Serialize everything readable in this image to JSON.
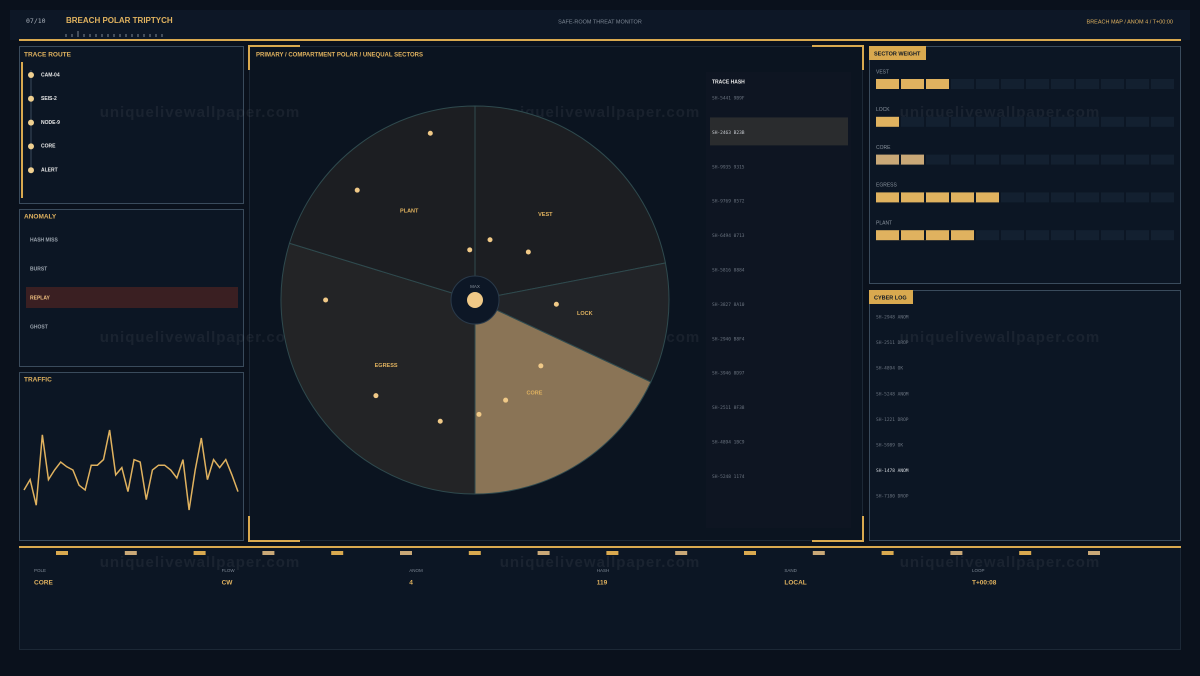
{
  "header": {
    "index": "07/10",
    "title": "BREACH POLAR TRIPTYCH",
    "subtitle": "SAFE-ROOM THREAT MONITOR",
    "breadcrumb": "BREACH MAP / ANOM 4 / T+00:00"
  },
  "watermark": "uniquelivewallpaper.com",
  "trace_route": {
    "title": "TRACE ROUTE",
    "nodes": [
      "CAM-04",
      "SEIS-2",
      "NODE-9",
      "CORE",
      "ALERT"
    ]
  },
  "anomaly": {
    "title": "ANOMALY",
    "items": [
      "HASH MISS",
      "BURST",
      "REPLAY",
      "GHOST"
    ],
    "selected": 2
  },
  "chart_data": [
    {
      "type": "pie",
      "title": "PRIMARY / COMPARTMENT POLAR / UNEQUAL SECTORS",
      "categories": [
        "VEST",
        "LOCK",
        "CORE",
        "EGRESS",
        "PLANT"
      ],
      "values": [
        79,
        36,
        65,
        107,
        73
      ],
      "colors": [
        "#1c1e22",
        "#222428",
        "#8a7456",
        "#232426",
        "#1c1e22"
      ],
      "center_label": "MAX",
      "points": {
        "theta": [
          345,
          313,
          354,
          14,
          48,
          93,
          135,
          163,
          178,
          196,
          226,
          270
        ],
        "r": [
          0.89,
          0.83,
          0.26,
          0.32,
          0.37,
          0.42,
          0.48,
          0.54,
          0.59,
          0.65,
          0.71,
          0.77
        ],
        "color": "#f0c987"
      }
    },
    {
      "type": "line",
      "title": "TRAFFIC",
      "color": "#e0b25f",
      "values": [
        25,
        38,
        6,
        94,
        38,
        50,
        60,
        54,
        50,
        31,
        25,
        56,
        56,
        63,
        100,
        44,
        53,
        23,
        63,
        60,
        13,
        50,
        56,
        56,
        50,
        40,
        63,
        0,
        50,
        90,
        38,
        63,
        53,
        63,
        44,
        23
      ]
    },
    {
      "type": "bar",
      "title": "SECTOR WEIGHT",
      "categories": [
        "VEST",
        "LOCK",
        "CORE",
        "EGRESS",
        "PLANT"
      ],
      "values": [
        3,
        1,
        2,
        5,
        4
      ],
      "colors": [
        "#e0b25f",
        "#e0b25f",
        "#c9a877",
        "#e0b25f",
        "#e0b25f"
      ]
    }
  ],
  "trace_hash": {
    "title": "TRACE HASH",
    "rows": [
      "SH-5441 9B9F",
      "SH-2463 B23B",
      "SH-9935 9315",
      "SH-9769 8572",
      "SH-6494 0713",
      "SH-5816 8884",
      "SH-3827 8A10",
      "SH-2940 B8F4",
      "SH-3946 8D97",
      "SH-2511 8F38",
      "SH-4894 1BC9",
      "SH-5248 1174"
    ],
    "selected": 1
  },
  "cyber_log": {
    "title": "CYBER LOG",
    "rows": [
      "SH-2948 ANOM",
      "SH-2511 DROP",
      "SH-4894 OK",
      "SH-5248 ANOM",
      "SH-1221 DROP",
      "SH-5989 OK",
      "SH-1478 ANOM",
      "SH-7180 DROP"
    ],
    "highlighted": 6
  },
  "footer": {
    "fields": [
      {
        "label": "POLE",
        "value": "CORE"
      },
      {
        "label": "FLOW",
        "value": "CW"
      },
      {
        "label": "ANOM",
        "value": "4"
      },
      {
        "label": "HASH",
        "value": "119"
      },
      {
        "label": "SAND",
        "value": "LOCAL"
      },
      {
        "label": "LOOP",
        "value": "T+00:08"
      }
    ]
  }
}
